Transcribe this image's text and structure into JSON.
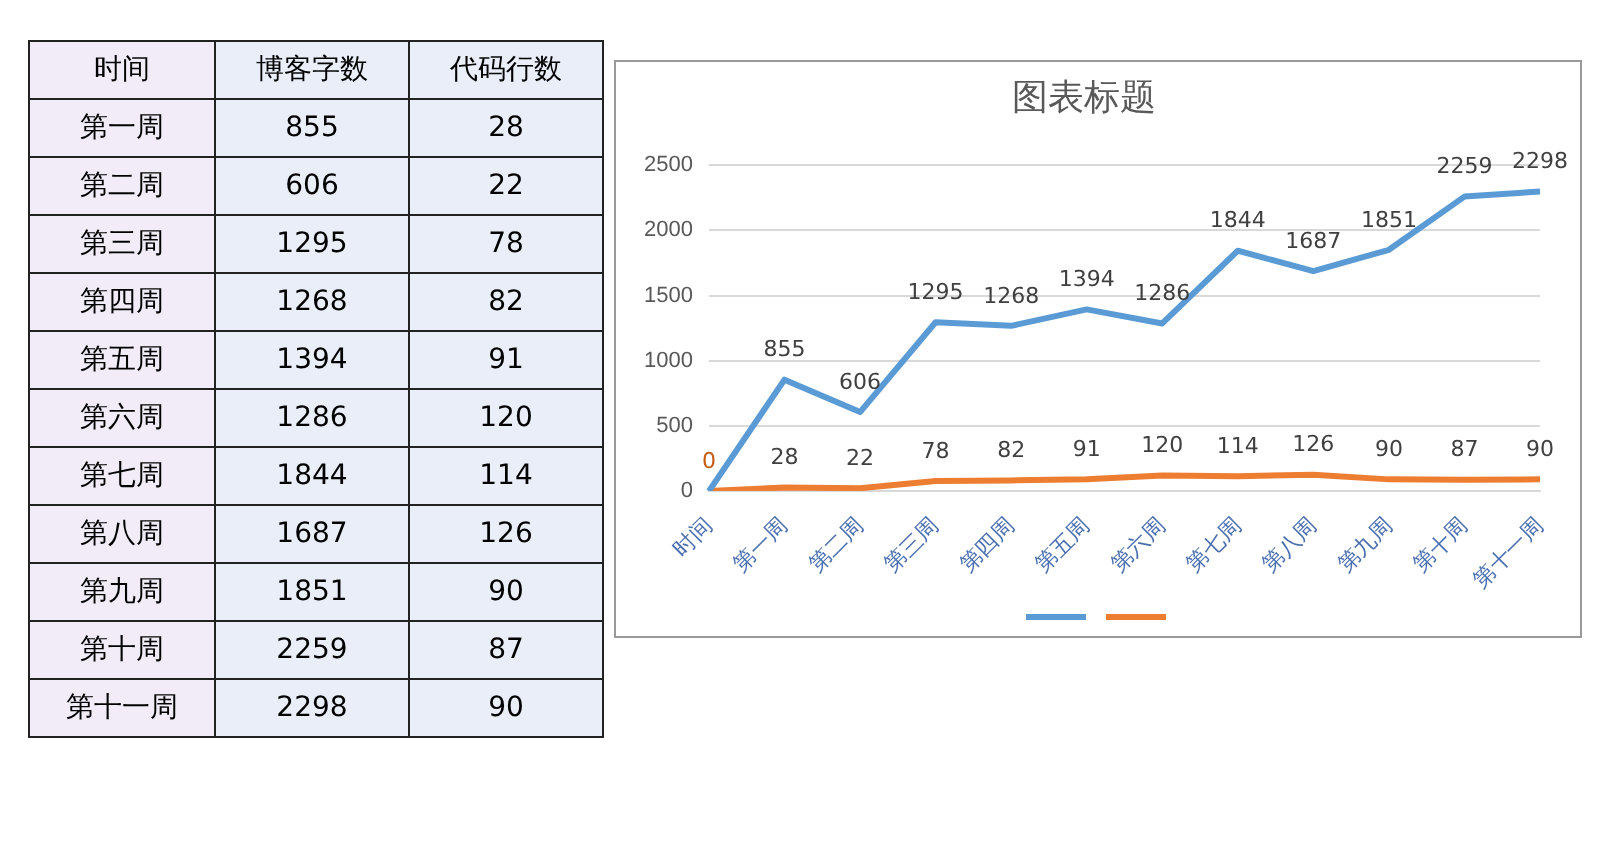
{
  "chart_data": [
    {
      "type": "heatmap",
      "ylabel": "时间",
      "categories": [
        "博客字数",
        "代码行数"
      ],
      "y_categories": [
        "第一周",
        "第二周",
        "第三周",
        "第四周",
        "第五周",
        "第六周",
        "第七周",
        "第八周",
        "第九周",
        "第十周",
        "第十一周"
      ],
      "cells": [
        [
          855,
          28
        ],
        [
          606,
          22
        ],
        [
          1295,
          78
        ],
        [
          1268,
          82
        ],
        [
          1394,
          91
        ],
        [
          1286,
          120
        ],
        [
          1844,
          114
        ],
        [
          1687,
          126
        ],
        [
          1851,
          90
        ],
        [
          2259,
          87
        ],
        [
          2298,
          90
        ]
      ],
      "color": "#e9eef9",
      "data_labels": true
    },
    {
      "type": "line",
      "title": "图表标题",
      "categories": [
        "时间",
        "第一周",
        "第二周",
        "第三周",
        "第四周",
        "第五周",
        "第六周",
        "第七周",
        "第八周",
        "第九周",
        "第十周",
        "第十一周"
      ],
      "series": [
        {
          "color": "#5b9bd5",
          "values": [
            0,
            855,
            606,
            1295,
            1268,
            1394,
            1286,
            1844,
            1687,
            1851,
            2259,
            2298
          ],
          "value_labels": [
            "0",
            "855",
            "606",
            "1295",
            "1268",
            "1394",
            "1286",
            "1844",
            "1687",
            "1851",
            "2259",
            "2298"
          ]
        },
        {
          "color": "#ed7d31",
          "values": [
            0,
            28,
            22,
            78,
            82,
            91,
            120,
            114,
            126,
            90,
            87,
            90
          ],
          "value_labels": [
            null,
            "28",
            "22",
            "78",
            "82",
            "91",
            "120",
            "114",
            "126",
            "90",
            "87",
            "90"
          ]
        }
      ],
      "ylim": [
        0,
        2500
      ],
      "yticks": [
        0,
        500,
        1000,
        1500,
        2000,
        2500
      ],
      "grid": "y",
      "marker": "none",
      "line_style": "solid"
    }
  ]
}
